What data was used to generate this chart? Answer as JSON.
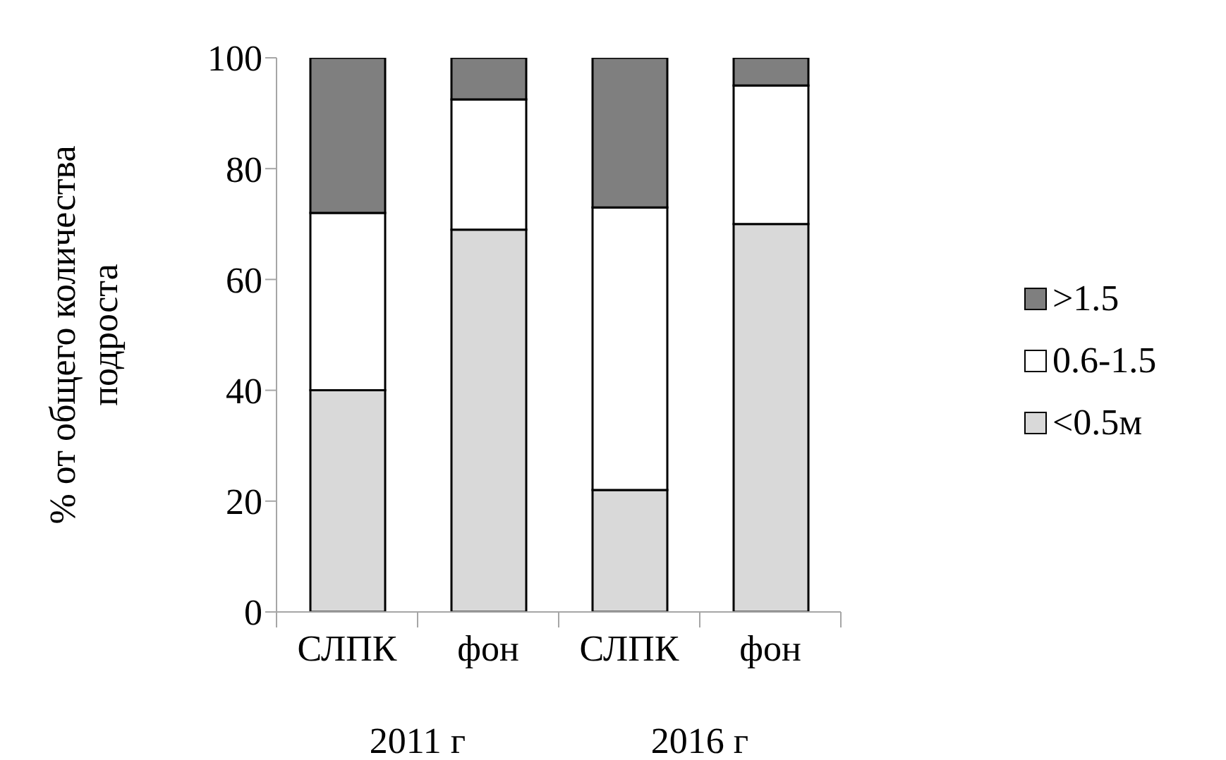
{
  "chart_data": {
    "type": "bar",
    "stacked": true,
    "ylabel": "% от общего количества подроста",
    "categories": [
      "СЛПК",
      "фон",
      "СЛПК",
      "фон"
    ],
    "annotations": [
      "2011 г",
      "2016 г"
    ],
    "series": [
      {
        "name": "<0.5м",
        "color": "#d9d9d9",
        "values": [
          40,
          69,
          22,
          70
        ]
      },
      {
        "name": "0.6-1.5",
        "color": "#ffffff",
        "values": [
          32,
          23.5,
          51,
          25
        ]
      },
      {
        "name": ">1.5",
        "color": "#7f7f7f",
        "values": [
          28,
          7.5,
          27,
          5
        ]
      }
    ],
    "ylim": [
      0,
      100
    ],
    "yticks": [
      0,
      20,
      40,
      60,
      80,
      100
    ],
    "legend": "right"
  }
}
